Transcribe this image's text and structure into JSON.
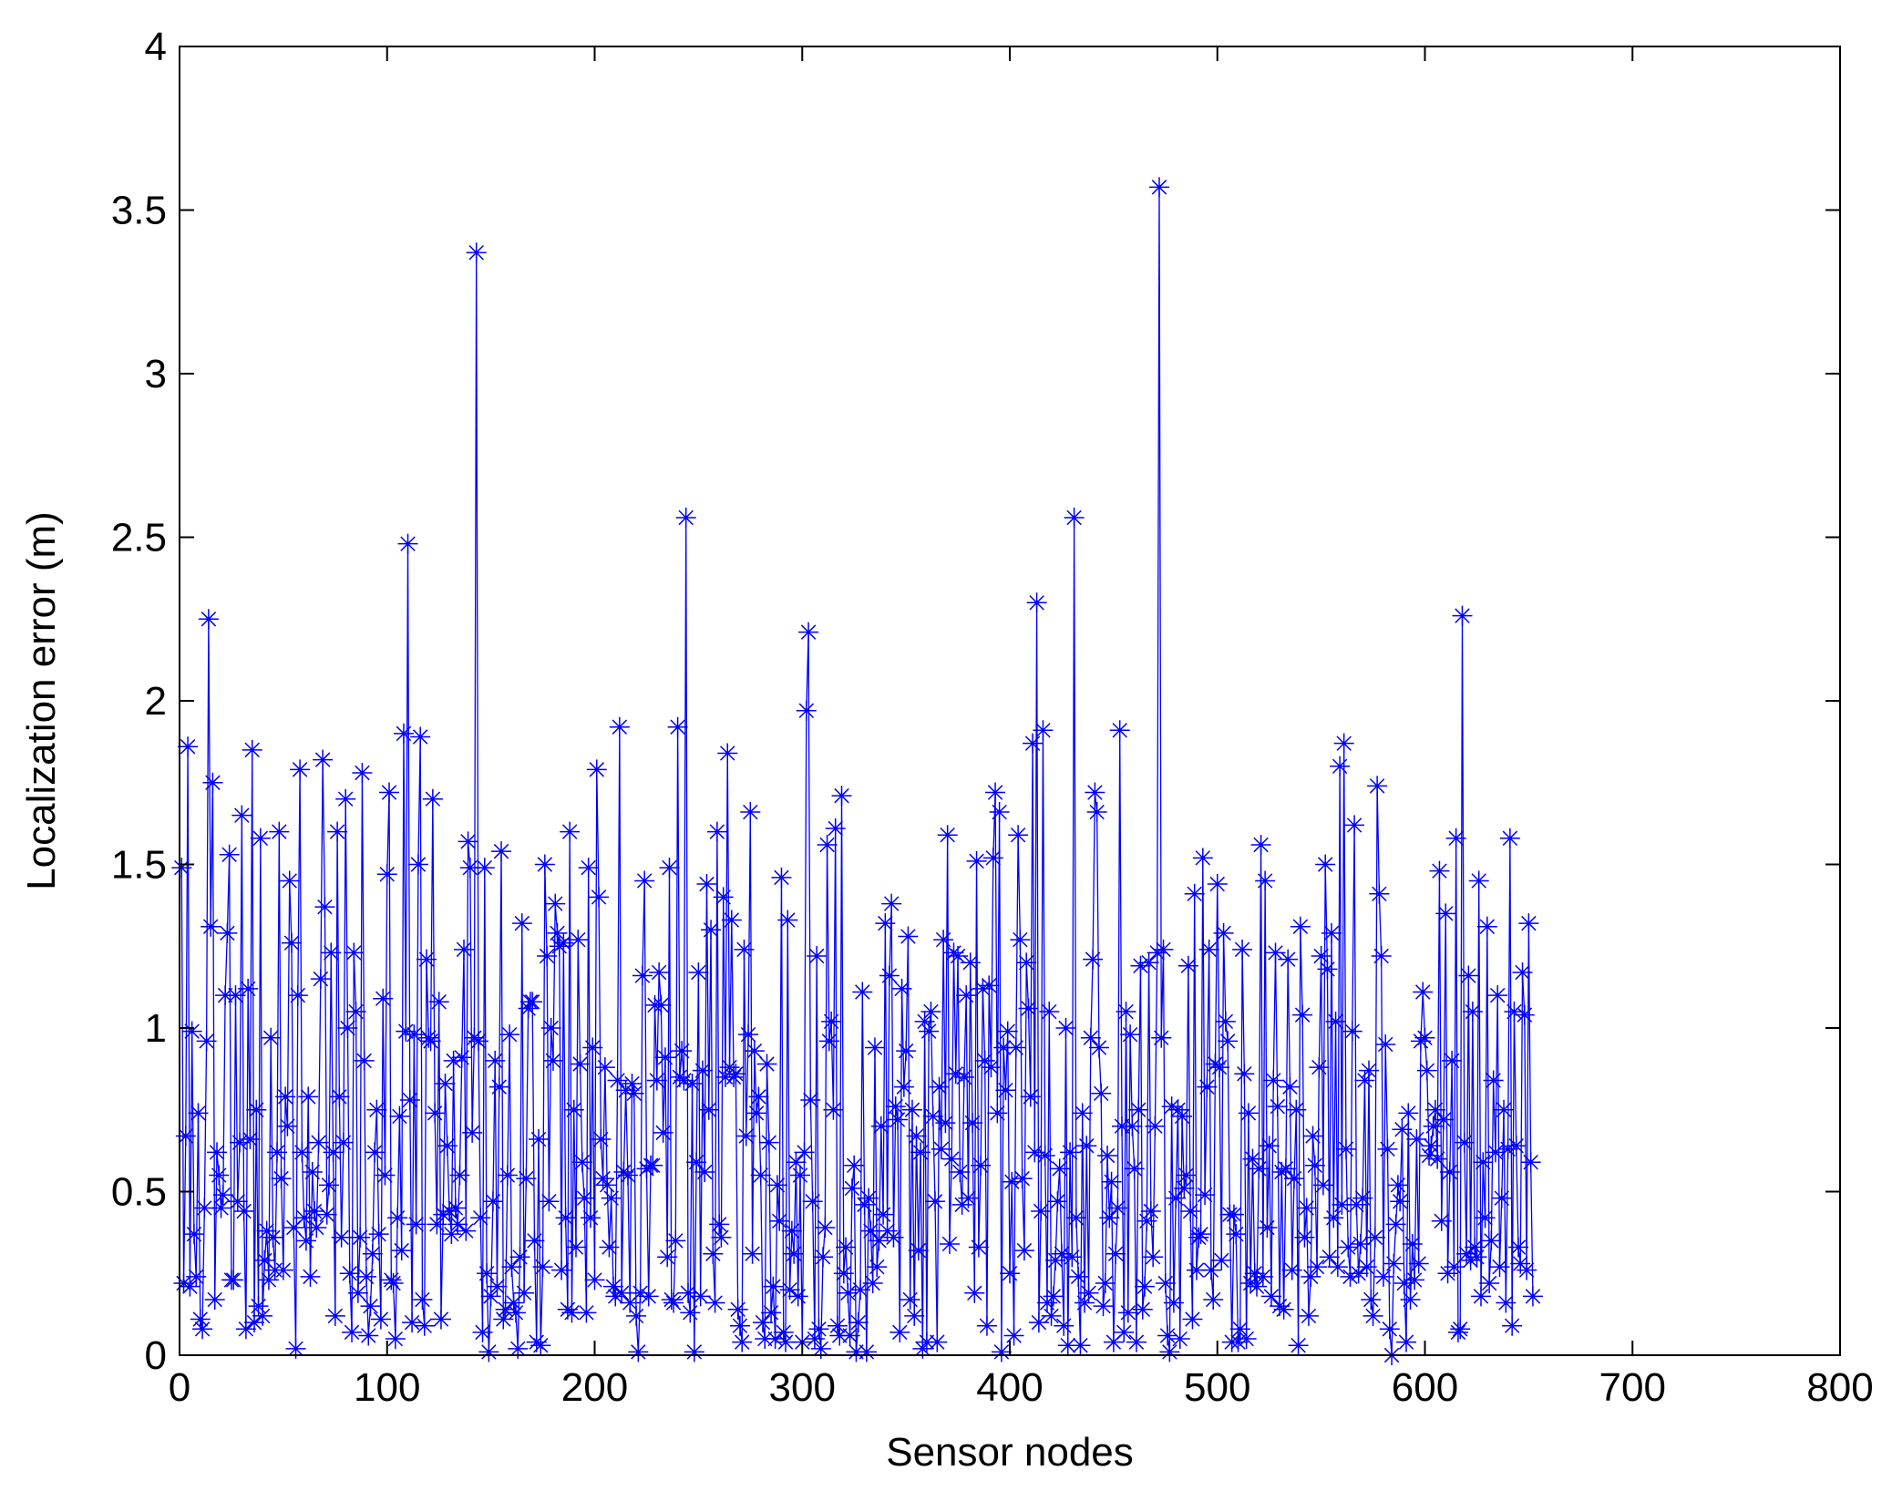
{
  "chart_data": {
    "type": "line",
    "x_label": "Sensor nodes",
    "y_label": "Localization error (m)",
    "color": "#0000ff",
    "marker": "*",
    "xlim": [
      0,
      800
    ],
    "xticks": [
      0,
      100,
      200,
      300,
      400,
      500,
      600,
      700,
      800
    ],
    "ylim": [
      0,
      4
    ],
    "yticks": [
      0,
      0.5,
      1,
      1.5,
      2,
      2.5,
      3,
      3.5,
      4
    ],
    "x": [
      1,
      2,
      3,
      4,
      5,
      6,
      7,
      8,
      9,
      10,
      11,
      12,
      13,
      14,
      15,
      16,
      17,
      18,
      19,
      20,
      21,
      22,
      23,
      24,
      25,
      26,
      27,
      28,
      29,
      30,
      31,
      32,
      33,
      34,
      35,
      36,
      37,
      38,
      39,
      40,
      41,
      42,
      43,
      44,
      45,
      46,
      47,
      48,
      49,
      50,
      51,
      52,
      53,
      54,
      55,
      56,
      57,
      58,
      59,
      60,
      61,
      62,
      63,
      64,
      65,
      66,
      67,
      68,
      69,
      70,
      71,
      72,
      73,
      74,
      75,
      76,
      77,
      78,
      79,
      80,
      81,
      82,
      83,
      84,
      85,
      86,
      87,
      88,
      89,
      90,
      91,
      92,
      93,
      94,
      95,
      96,
      97,
      98,
      99,
      100,
      101,
      102,
      103,
      104,
      105,
      106,
      107,
      108,
      109,
      110,
      111,
      112,
      113,
      114,
      115,
      116,
      117,
      118,
      119,
      120,
      121,
      122,
      123,
      124,
      125,
      126,
      127,
      128,
      129,
      130,
      131,
      132,
      133,
      134,
      135,
      136,
      137,
      138,
      139,
      140,
      141,
      142,
      143,
      144,
      145,
      146,
      147,
      148,
      149,
      150,
      151,
      152,
      153,
      154,
      155,
      156,
      157,
      158,
      159,
      160,
      161,
      162,
      163,
      164,
      165,
      166,
      167,
      168,
      169,
      170,
      171,
      172,
      173,
      174,
      175,
      176,
      177,
      178,
      179,
      180,
      181,
      182,
      183,
      184,
      185,
      186,
      187,
      188,
      189,
      190,
      191,
      192,
      193,
      194,
      195,
      196,
      197,
      198,
      199,
      200,
      201,
      202,
      203,
      204,
      205,
      206,
      207,
      208,
      209,
      210,
      211,
      212,
      213,
      214,
      215,
      216,
      217,
      218,
      219,
      220,
      221,
      222,
      223,
      224,
      225,
      226,
      227,
      228,
      229,
      230,
      231,
      232,
      233,
      234,
      235,
      236,
      237,
      238,
      239,
      240,
      241,
      242,
      243,
      244,
      245,
      246,
      247,
      248,
      249,
      250,
      251,
      252,
      253,
      254,
      255,
      256,
      257,
      258,
      259,
      260,
      261,
      262,
      263,
      264,
      265,
      266,
      267,
      268,
      269,
      270,
      271,
      272,
      273,
      274,
      275,
      276,
      277,
      278,
      279,
      280,
      281,
      282,
      283,
      284,
      285,
      286,
      287,
      288,
      289,
      290,
      291,
      292,
      293,
      294,
      295,
      296,
      297,
      298,
      299,
      300,
      301,
      302,
      303,
      304,
      305,
      306,
      307,
      308,
      309,
      310,
      311,
      312,
      313,
      314,
      315,
      316,
      317,
      318,
      319,
      320,
      321,
      322,
      323,
      324,
      325,
      326,
      327,
      328,
      329,
      330,
      331,
      332,
      333,
      334,
      335,
      336,
      337,
      338,
      339,
      340,
      341,
      342,
      343,
      344,
      345,
      346,
      347,
      348,
      349,
      350,
      351,
      352,
      353,
      354,
      355,
      356,
      357,
      358,
      359,
      360,
      361,
      362,
      363,
      364,
      365,
      366,
      367,
      368,
      369,
      370,
      371,
      372,
      373,
      374,
      375,
      376,
      377,
      378,
      379,
      380,
      381,
      382,
      383,
      384,
      385,
      386,
      387,
      388,
      389,
      390,
      391,
      392,
      393,
      394,
      395,
      396,
      397,
      398,
      399,
      400,
      401,
      402,
      403,
      404,
      405,
      406,
      407,
      408,
      409,
      410,
      411,
      412,
      413,
      414,
      415,
      416,
      417,
      418,
      419,
      420,
      421,
      422,
      423,
      424,
      425,
      426,
      427,
      428,
      429,
      430,
      431,
      432,
      433,
      434,
      435,
      436,
      437,
      438,
      439,
      440,
      441,
      442,
      443,
      444,
      445,
      446,
      447,
      448,
      449,
      450,
      451,
      452,
      453,
      454,
      455,
      456,
      457,
      458,
      459,
      460,
      461,
      462,
      463,
      464,
      465,
      466,
      467,
      468,
      469,
      470,
      471,
      472,
      473,
      474,
      475,
      476,
      477,
      478,
      479,
      480,
      481,
      482,
      483,
      484,
      485,
      486,
      487,
      488,
      489,
      490,
      491,
      492,
      493,
      494,
      495,
      496,
      497,
      498,
      499,
      500,
      501,
      502,
      503,
      504,
      505,
      506,
      507,
      508,
      509,
      510,
      511,
      512,
      513,
      514,
      515,
      516,
      517,
      518,
      519,
      520,
      521,
      522,
      523,
      524,
      525,
      526,
      527,
      528,
      529,
      530,
      531,
      532,
      533,
      534,
      535,
      536,
      537,
      538,
      539,
      540,
      541,
      542,
      543,
      544,
      545,
      546,
      547,
      548,
      549,
      550,
      551,
      552,
      553,
      554,
      555,
      556,
      557,
      558,
      559,
      560,
      561,
      562,
      563,
      564,
      565,
      566,
      567,
      568,
      569,
      570,
      571,
      572,
      573,
      574,
      575,
      576,
      577,
      578,
      579,
      580,
      581,
      582,
      583,
      584,
      585,
      586,
      587,
      588,
      589,
      590,
      591,
      592,
      593,
      594,
      595,
      596,
      597,
      598,
      599,
      600,
      601,
      602,
      603,
      604,
      605,
      606,
      607,
      608,
      609,
      610,
      611,
      612,
      613,
      614,
      615,
      616,
      617,
      618,
      619,
      620,
      621,
      622,
      623,
      624,
      625,
      626,
      627,
      628,
      629,
      630,
      631,
      632,
      633,
      634,
      635,
      636,
      637,
      638,
      639,
      640,
      641,
      642,
      643,
      644,
      645,
      646,
      647,
      648,
      649,
      650,
      651,
      652
    ],
    "values": [
      1.49,
      0.22,
      0.67,
      1.86,
      0.21,
      0.99,
      0.37,
      0.24,
      0.74,
      0.11,
      0.08,
      0.45,
      0.96,
      2.25,
      1.31,
      1.75,
      0.17,
      0.62,
      0.55,
      0.45,
      0.49,
      1.1,
      1.29,
      1.53,
      0.23,
      0.23,
      1.1,
      0.47,
      0.65,
      1.65,
      0.44,
      0.08,
      1.12,
      0.66,
      1.85,
      0.1,
      0.75,
      0.15,
      1.58,
      0.12,
      0.29,
      0.38,
      0.23,
      0.97,
      0.36,
      0.26,
      0.62,
      1.6,
      0.54,
      0.26,
      0.79,
      0.7,
      1.45,
      1.26,
      0.39,
      0.02,
      1.1,
      1.79,
      0.62,
      0.42,
      0.35,
      0.79,
      0.24,
      0.56,
      0.44,
      0.39,
      0.65,
      1.15,
      1.82,
      1.37,
      0.43,
      0.52,
      1.23,
      0.62,
      0.12,
      1.6,
      0.79,
      0.36,
      0.65,
      1.7,
      1.0,
      0.25,
      0.07,
      1.23,
      1.05,
      0.19,
      0.36,
      1.78,
      0.9,
      0.24,
      0.06,
      0.15,
      0.31,
      0.62,
      0.75,
      0.37,
      0.11,
      1.09,
      0.55,
      1.47,
      1.72,
      0.23,
      0.22,
      0.05,
      0.42,
      0.73,
      0.32,
      1.9,
      0.99,
      2.48,
      0.78,
      0.1,
      0.98,
      0.4,
      1.5,
      1.89,
      0.17,
      0.09,
      1.21,
      0.97,
      0.96,
      1.7,
      0.74,
      0.4,
      1.08,
      0.11,
      0.43,
      0.83,
      0.64,
      0.44,
      0.37,
      0.9,
      0.45,
      0.4,
      0.55,
      0.91,
      1.24,
      0.38,
      1.57,
      1.49,
      0.68,
      0.97,
      3.37,
      0.96,
      0.42,
      0.07,
      1.49,
      0.25,
      0.01,
      0.18,
      0.47,
      0.9,
      0.21,
      0.82,
      1.54,
      0.11,
      0.14,
      0.55,
      0.98,
      0.27,
      0.16,
      0.13,
      0.02,
      0.3,
      1.32,
      0.19,
      0.54,
      1.06,
      1.08,
      1.08,
      0.35,
      0.04,
      0.66,
      0.03,
      0.27,
      1.5,
      1.22,
      0.47,
      1.0,
      0.9,
      1.38,
      1.29,
      1.25,
      0.26,
      1.26,
      0.42,
      0.14,
      1.6,
      0.13,
      0.75,
      0.33,
      1.27,
      0.89,
      0.59,
      0.48,
      0.13,
      1.49,
      0.42,
      0.94,
      0.23,
      1.79,
      1.4,
      0.66,
      0.54,
      0.88,
      0.52,
      0.33,
      0.48,
      0.21,
      0.18,
      0.84,
      1.92,
      0.19,
      0.56,
      0.81,
      0.55,
      0.16,
      0.83,
      0.8,
      0.12,
      0.01,
      0.19,
      1.16,
      1.45,
      0.57,
      0.18,
      0.58,
      0.58,
      1.07,
      0.84,
      1.17,
      1.07,
      0.68,
      0.91,
      0.3,
      1.49,
      0.17,
      0.16,
      0.35,
      1.92,
      0.85,
      0.93,
      0.84,
      2.56,
      0.19,
      0.13,
      0.83,
      0.01,
      0.59,
      1.17,
      0.18,
      0.87,
      0.56,
      1.44,
      0.75,
      1.3,
      0.31,
      0.16,
      1.6,
      0.4,
      0.36,
      1.4,
      0.85,
      1.84,
      0.88,
      1.33,
      0.85,
      0.86,
      0.14,
      0.09,
      0.04,
      1.24,
      0.67,
      0.98,
      1.66,
      0.31,
      0.93,
      0.74,
      0.79,
      0.55,
      0.1,
      0.05,
      0.89,
      0.65,
      0.13,
      0.21,
      0.05,
      0.52,
      0.41,
      1.46,
      0.07,
      0.04,
      1.33,
      0.2,
      0.38,
      0.31,
      0.59,
      0.18,
      0.55,
      0.04,
      0.62,
      1.97,
      2.21,
      0.78,
      0.47,
      0.05,
      1.22,
      0.08,
      0.02,
      0.3,
      0.39,
      1.56,
      0.96,
      1.02,
      0.75,
      1.61,
      0.09,
      0.06,
      1.71,
      0.25,
      0.33,
      0.19,
      0.06,
      0.51,
      0.58,
      0.01,
      0.1,
      0.2,
      1.11,
      0.46,
      0.01,
      0.48,
      0.38,
      0.22,
      0.94,
      0.27,
      0.35,
      0.7,
      0.43,
      1.32,
      0.38,
      1.16,
      1.38,
      0.36,
      0.76,
      0.72,
      0.07,
      1.12,
      0.82,
      0.93,
      1.28,
      0.17,
      0.75,
      0.12,
      0.67,
      0.32,
      0.62,
      0.02,
      1.02,
      0.04,
      0.99,
      1.05,
      0.73,
      0.47,
      0.04,
      0.82,
      0.63,
      1.27,
      0.71,
      1.59,
      0.34,
      0.6,
      1.23,
      0.86,
      1.22,
      0.56,
      0.46,
      0.85,
      1.1,
      0.48,
      1.2,
      0.71,
      0.19,
      1.51,
      0.33,
      0.58,
      1.12,
      0.9,
      0.09,
      1.13,
      0.88,
      1.52,
      1.72,
      0.74,
      1.66,
      0.01,
      0.94,
      0.81,
      0.99,
      0.25,
      0.53,
      0.06,
      0.94,
      1.59,
      1.27,
      0.54,
      0.32,
      1.2,
      1.06,
      0.79,
      1.87,
      0.62,
      2.3,
      0.1,
      0.44,
      1.91,
      0.61,
      0.16,
      1.05,
      0.12,
      0.18,
      0.29,
      0.47,
      0.57,
      0.31,
      0.09,
      1.0,
      0.03,
      0.62,
      0.3,
      2.56,
      0.42,
      0.24,
      0.03,
      0.74,
      0.16,
      0.64,
      0.19,
      0.97,
      1.21,
      1.72,
      1.66,
      0.94,
      0.8,
      0.15,
      0.22,
      0.61,
      0.42,
      0.53,
      0.04,
      0.31,
      0.45,
      1.91,
      0.7,
      0.07,
      1.05,
      0.13,
      0.98,
      0.7,
      0.57,
      0.04,
      0.75,
      1.19,
      0.14,
      0.21,
      0.41,
      1.2,
      0.44,
      0.3,
      0.7,
      1.23,
      3.57,
      0.97,
      1.24,
      0.22,
      0.06,
      0.01,
      0.76,
      0.16,
      0.48,
      0.75,
      0.05,
      0.73,
      0.51,
      0.55,
      1.19,
      0.44,
      0.11,
      1.41,
      0.26,
      0.36,
      0.37,
      1.52,
      0.49,
      0.82,
      1.24,
      0.26,
      0.17,
      0.89,
      1.44,
      0.88,
      0.29,
      1.29,
      1.02,
      0.96,
      0.43,
      0.04,
      0.43,
      0.37,
      0.04,
      0.08,
      1.24,
      0.86,
      0.05,
      0.74,
      0.22,
      0.6,
      0.25,
      0.21,
      0.57,
      1.56,
      0.24,
      1.45,
      0.39,
      0.64,
      0.18,
      0.84,
      1.23,
      0.76,
      0.15,
      0.56,
      0.14,
      0.57,
      1.21,
      0.82,
      0.26,
      0.54,
      0.75,
      0.03,
      1.31,
      1.04,
      0.36,
      0.45,
      0.12,
      0.24,
      0.67,
      0.58,
      0.27,
      0.88,
      1.22,
      0.52,
      1.5,
      1.18,
      0.3,
      1.29,
      0.42,
      1.02,
      0.27,
      1.8,
      0.46,
      1.87,
      0.63,
      0.33,
      0.24,
      0.99,
      1.62,
      0.46,
      0.25,
      0.34,
      0.48,
      0.84,
      0.27,
      0.87,
      0.17,
      0.12,
      0.36,
      1.74,
      1.41,
      1.22,
      0.24,
      0.95,
      0.63,
      0.08,
      0.0,
      0.28,
      0.4,
      0.52,
      0.47,
      0.69,
      0.22,
      0.04,
      0.74,
      0.17,
      0.34,
      0.23,
      0.66,
      0.28,
      0.96,
      1.11,
      0.97,
      0.87,
      0.61,
      0.64,
      0.7,
      0.75,
      0.6,
      1.48,
      0.41,
      0.72,
      1.35,
      0.25,
      0.56,
      0.9,
      0.27,
      1.58,
      0.07,
      0.08,
      2.26,
      0.65,
      0.31,
      1.16,
      0.29,
      1.05,
      0.33,
      0.3,
      1.45,
      0.18,
      0.59,
      0.42,
      1.31,
      0.22,
      0.35,
      0.84,
      0.62,
      1.1,
      0.27,
      0.48,
      0.75,
      0.16,
      0.63,
      1.58,
      0.09,
      1.05,
      0.64,
      0.33,
      0.28,
      1.17,
      1.04,
      0.26,
      1.32,
      0.59,
      0.18
    ]
  }
}
